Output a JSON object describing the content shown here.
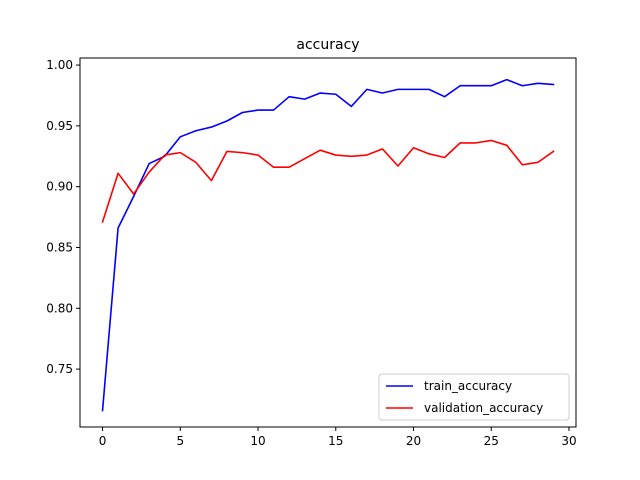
{
  "chart_data": {
    "type": "line",
    "title": "accuracy",
    "xlabel": "",
    "ylabel": "",
    "xlim": [
      -1.45,
      30.45
    ],
    "ylim": [
      0.7024,
      1.0058
    ],
    "xticks": [
      0,
      5,
      10,
      15,
      20,
      25,
      30
    ],
    "yticks": [
      0.75,
      0.8,
      0.85,
      0.9,
      0.95,
      1.0
    ],
    "ytick_labels": [
      "0.75",
      "0.80",
      "0.85",
      "0.90",
      "0.95",
      "1.00"
    ],
    "grid": false,
    "legend": "lower-right",
    "x": [
      0,
      1,
      2,
      3,
      4,
      5,
      6,
      7,
      8,
      9,
      10,
      11,
      12,
      13,
      14,
      15,
      16,
      17,
      18,
      19,
      20,
      21,
      22,
      23,
      24,
      25,
      26,
      27,
      28,
      29
    ],
    "series": [
      {
        "name": "train_accuracy",
        "color": "#0000ff",
        "values": [
          0.716,
          0.866,
          0.892,
          0.919,
          0.925,
          0.941,
          0.946,
          0.949,
          0.954,
          0.961,
          0.963,
          0.963,
          0.974,
          0.972,
          0.977,
          0.976,
          0.966,
          0.98,
          0.977,
          0.98,
          0.98,
          0.98,
          0.974,
          0.983,
          0.983,
          0.983,
          0.988,
          0.983,
          0.985,
          0.984
        ]
      },
      {
        "name": "validation_accuracy",
        "color": "#ff0000",
        "values": [
          0.871,
          0.911,
          0.894,
          0.912,
          0.926,
          0.928,
          0.92,
          0.905,
          0.929,
          0.928,
          0.926,
          0.916,
          0.916,
          0.923,
          0.93,
          0.926,
          0.925,
          0.926,
          0.931,
          0.917,
          0.932,
          0.927,
          0.924,
          0.936,
          0.936,
          0.938,
          0.934,
          0.918,
          0.92,
          0.929
        ]
      }
    ]
  }
}
